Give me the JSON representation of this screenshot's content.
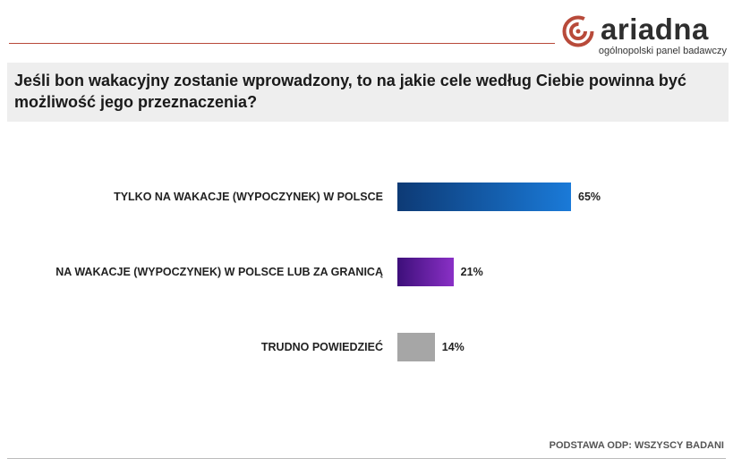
{
  "brand": {
    "name": "ariadna",
    "tagline": "ogólnopolski panel badawczy",
    "accent_color": "#b84a3a"
  },
  "question": "Jeśli bon wakacyjny zostanie wprowadzony, to na jakie cele według Ciebie powinna być możliwość jego przeznaczenia?",
  "footer_note": "PODSTAWA ODP: WSZYSCY BADANI",
  "chart_data": {
    "type": "bar",
    "orientation": "horizontal",
    "title": "Jeśli bon wakacyjny zostanie wprowadzony, to na jakie cele według Ciebie powinna być możliwość jego przeznaczenia?",
    "categories": [
      "TYLKO NA WAKACJE (WYPOCZYNEK) W POLSCE",
      "NA WAKACJE (WYPOCZYNEK) W POLSCE LUB ZA GRANICĄ",
      "TRUDNO POWIEDZIEĆ"
    ],
    "values": [
      65,
      21,
      14
    ],
    "value_labels": [
      "65%",
      "21%",
      "14%"
    ],
    "colors": [
      [
        "#0d3a75",
        "#1a7ad8"
      ],
      [
        "#3d0f7a",
        "#8a30c6"
      ],
      [
        "#a6a6a6",
        "#a6a6a6"
      ]
    ],
    "unit": "%",
    "xlim": [
      0,
      100
    ],
    "grid": false,
    "legend": "none"
  }
}
